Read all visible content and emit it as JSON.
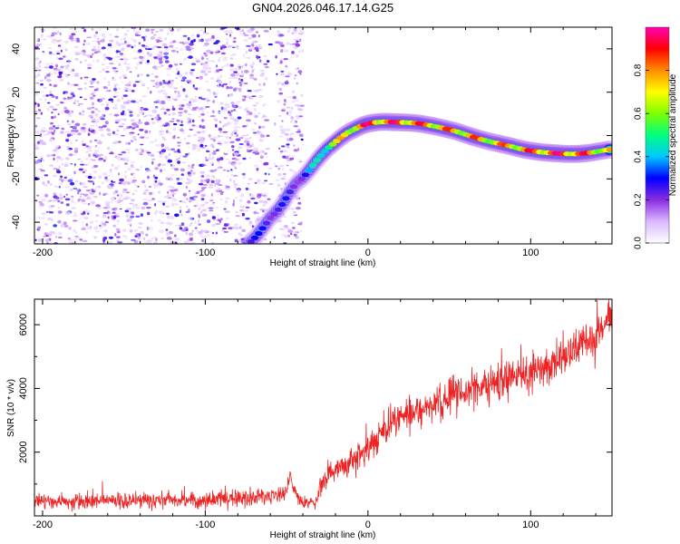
{
  "title": "GN04.2026.046.17.14.G25",
  "chart_data": [
    {
      "type": "heatmap",
      "name": "spectrogram",
      "xlabel": "Height of straight line (km)",
      "ylabel": "Frequency (Hz)",
      "xlim": [
        -205,
        150
      ],
      "ylim": [
        -50,
        50
      ],
      "xticks": [
        -200,
        -100,
        0,
        100
      ],
      "yticks": [
        -40,
        -20,
        0,
        20,
        40
      ],
      "noise_region_x": [
        -205,
        -40
      ],
      "trace": {
        "x": [
          -72,
          -68,
          -64,
          -60,
          -56,
          -52,
          -48,
          -44,
          -40,
          -36,
          -32,
          -28,
          -24,
          -20,
          -16,
          -12,
          -8,
          -4,
          0,
          4,
          8,
          12,
          16,
          20,
          24,
          28,
          32,
          36,
          40,
          44,
          48,
          52,
          56,
          60,
          64,
          68,
          72,
          76,
          80,
          84,
          88,
          92,
          96,
          100,
          104,
          108,
          112,
          116,
          120,
          124,
          128,
          132,
          136,
          140,
          144,
          148
        ],
        "freq_hz": [
          -49,
          -46,
          -42,
          -38,
          -35,
          -31,
          -26,
          -22,
          -19.5,
          -16,
          -12,
          -8.5,
          -5.5,
          -3,
          -0.5,
          1.5,
          3,
          4.5,
          5.5,
          6,
          6.3,
          6.3,
          6.2,
          6.1,
          6.0,
          5.8,
          5.5,
          5.0,
          4.4,
          3.8,
          3.1,
          2.4,
          1.5,
          0.5,
          -0.5,
          -1.4,
          -2.2,
          -3.0,
          -3.6,
          -4.3,
          -5.0,
          -5.8,
          -6.5,
          -7.0,
          -7.4,
          -7.8,
          -8.0,
          -8.2,
          -8.4,
          -8.5,
          -8.5,
          -8.3,
          -8.0,
          -7.5,
          -7.0,
          -6.5
        ],
        "amplitude": [
          0.3,
          0.3,
          0.32,
          0.3,
          0.3,
          0.28,
          0.27,
          0.28,
          0.3,
          0.4,
          0.5,
          0.6,
          0.7,
          0.75,
          0.8,
          0.85,
          0.9,
          0.95,
          1.0,
          1.0,
          0.98,
          0.97,
          0.98,
          0.98,
          0.97,
          0.96,
          0.95,
          0.93,
          0.92,
          0.9,
          0.9,
          0.88,
          0.88,
          0.9,
          0.9,
          0.88,
          0.86,
          0.85,
          0.85,
          0.88,
          0.9,
          0.9,
          0.92,
          0.95,
          0.96,
          0.97,
          0.98,
          0.99,
          1.0,
          1.0,
          1.0,
          0.96,
          0.92,
          0.88,
          0.85,
          0.8
        ]
      },
      "colorbar": {
        "label": "Normalized spectral amplitude",
        "range": [
          0,
          1
        ],
        "ticks": [
          "0.0",
          "0.2",
          "0.4",
          "0.6",
          "0.8"
        ],
        "tick_values": [
          0,
          0.2,
          0.4,
          0.6,
          0.8
        ],
        "colors": [
          "#ffffff",
          "#d9b8ff",
          "#8a2be2",
          "#0000ff",
          "#00c8ff",
          "#00ff7f",
          "#7fff00",
          "#ffff00",
          "#ff8c00",
          "#ff0000",
          "#ff00b4"
        ]
      }
    },
    {
      "type": "line",
      "name": "snr",
      "xlabel": "Height of straight line (km)",
      "ylabel": "SNR (10 * v/v)",
      "xlim": [
        -205,
        150
      ],
      "ylim": [
        0,
        6800
      ],
      "xticks": [
        -200,
        -100,
        0,
        100
      ],
      "yticks": [
        2000,
        4000,
        6000
      ],
      "color": "#ee2222",
      "trend": {
        "x": [
          -205,
          -150,
          -100,
          -70,
          -60,
          -50,
          -48,
          -46,
          -44,
          -40,
          -35,
          -32,
          -30,
          -25,
          -20,
          -10,
          0,
          10,
          20,
          30,
          40,
          50,
          60,
          70,
          80,
          90,
          100,
          110,
          120,
          130,
          140,
          150
        ],
        "y": [
          450,
          470,
          500,
          560,
          620,
          750,
          1300,
          800,
          600,
          420,
          400,
          450,
          800,
          1300,
          1500,
          1700,
          2100,
          2700,
          3100,
          3300,
          3500,
          3700,
          3900,
          4050,
          4200,
          4350,
          4500,
          4700,
          5000,
          5300,
          5600,
          6200
        ]
      },
      "noise_amplitude": {
        "x": [
          -205,
          -60,
          -40,
          -20,
          0,
          50,
          100,
          150
        ],
        "y": [
          250,
          300,
          250,
          450,
          550,
          550,
          650,
          700
        ]
      }
    }
  ]
}
